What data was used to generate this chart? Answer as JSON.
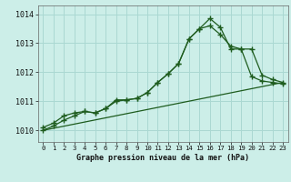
{
  "title": "Graphe pression niveau de la mer (hPa)",
  "background_color": "#cceee8",
  "grid_color": "#aad8d2",
  "line_color": "#1e5c1e",
  "xlim": [
    -0.5,
    23.5
  ],
  "ylim": [
    1009.6,
    1014.3
  ],
  "yticks": [
    1010,
    1011,
    1012,
    1013,
    1014
  ],
  "xticks": [
    0,
    1,
    2,
    3,
    4,
    5,
    6,
    7,
    8,
    9,
    10,
    11,
    12,
    13,
    14,
    15,
    16,
    17,
    18,
    19,
    20,
    21,
    22,
    23
  ],
  "series1": {
    "x": [
      0,
      1,
      2,
      3,
      4,
      5,
      6,
      7,
      8,
      9,
      10,
      11,
      12,
      13,
      14,
      15,
      16,
      17,
      18,
      19,
      20,
      21,
      22,
      23
    ],
    "y": [
      1010.1,
      1010.25,
      1010.5,
      1010.6,
      1010.65,
      1010.6,
      1010.75,
      1011.05,
      1011.05,
      1011.1,
      1011.3,
      1011.65,
      1011.95,
      1012.3,
      1013.15,
      1013.5,
      1013.85,
      1013.55,
      1012.8,
      1012.8,
      1011.85,
      1011.7,
      1011.65,
      1011.6
    ]
  },
  "series2": {
    "x": [
      0,
      1,
      2,
      3,
      4,
      5,
      6,
      7,
      8,
      9,
      10,
      11,
      12,
      13,
      14,
      15,
      16,
      17,
      18,
      19,
      20,
      21,
      22,
      23
    ],
    "y": [
      1010.0,
      1010.15,
      1010.35,
      1010.5,
      1010.65,
      1010.6,
      1010.75,
      1011.0,
      1011.05,
      1011.1,
      1011.3,
      1011.65,
      1011.95,
      1012.3,
      1013.15,
      1013.5,
      1013.6,
      1013.3,
      1012.9,
      1012.8,
      1012.8,
      1011.9,
      1011.75,
      1011.65
    ]
  },
  "series3": {
    "x": [
      0,
      23
    ],
    "y": [
      1010.0,
      1011.65
    ]
  }
}
